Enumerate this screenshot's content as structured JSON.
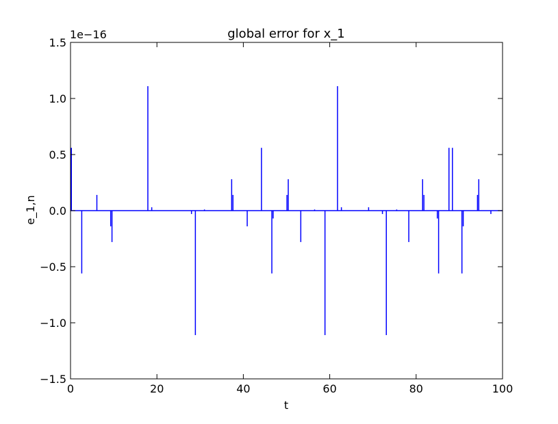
{
  "chart_data": {
    "type": "line",
    "title": "global error for x_1",
    "xlabel": "t",
    "ylabel": "e_1,n",
    "y_scale_label": "1e−16",
    "xlim": [
      0,
      100
    ],
    "ylim": [
      -1.5,
      1.5
    ],
    "x_ticks": [
      0,
      20,
      40,
      60,
      80,
      100
    ],
    "x_tick_labels": [
      "0",
      "20",
      "40",
      "60",
      "80",
      "100"
    ],
    "y_ticks": [
      -1.5,
      -1.0,
      -0.5,
      0.0,
      0.5,
      1.0,
      1.5
    ],
    "y_tick_labels": [
      "−1.5",
      "−1.0",
      "−0.5",
      "0.0",
      "0.5",
      "1.0",
      "1.5"
    ],
    "grid": false,
    "series": [
      {
        "color": "#0000ff",
        "spikes": [
          {
            "t": 0.2,
            "v": 0.56
          },
          {
            "t": 2.6,
            "v": -0.56
          },
          {
            "t": 6.1,
            "v": 0.14
          },
          {
            "t": 9.3,
            "v": -0.14
          },
          {
            "t": 9.6,
            "v": -0.28
          },
          {
            "t": 17.9,
            "v": 1.11
          },
          {
            "t": 18.8,
            "v": 0.03
          },
          {
            "t": 28.0,
            "v": -0.03
          },
          {
            "t": 28.9,
            "v": -1.11
          },
          {
            "t": 31.0,
            "v": 0.01
          },
          {
            "t": 37.3,
            "v": 0.28
          },
          {
            "t": 37.6,
            "v": 0.14
          },
          {
            "t": 40.9,
            "v": -0.14
          },
          {
            "t": 44.2,
            "v": 0.56
          },
          {
            "t": 46.6,
            "v": -0.56
          },
          {
            "t": 46.9,
            "v": -0.07
          },
          {
            "t": 50.1,
            "v": 0.14
          },
          {
            "t": 50.4,
            "v": 0.28
          },
          {
            "t": 53.3,
            "v": -0.28
          },
          {
            "t": 56.5,
            "v": 0.01
          },
          {
            "t": 58.9,
            "v": -1.11
          },
          {
            "t": 61.8,
            "v": 1.11
          },
          {
            "t": 62.7,
            "v": 0.03
          },
          {
            "t": 69.0,
            "v": 0.03
          },
          {
            "t": 72.2,
            "v": -0.03
          },
          {
            "t": 73.1,
            "v": -1.11
          },
          {
            "t": 75.5,
            "v": 0.01
          },
          {
            "t": 78.3,
            "v": -0.28
          },
          {
            "t": 81.5,
            "v": 0.28
          },
          {
            "t": 81.8,
            "v": 0.14
          },
          {
            "t": 84.9,
            "v": -0.07
          },
          {
            "t": 85.2,
            "v": -0.56
          },
          {
            "t": 87.6,
            "v": 0.56
          },
          {
            "t": 88.4,
            "v": 0.56
          },
          {
            "t": 90.6,
            "v": -0.56
          },
          {
            "t": 90.9,
            "v": -0.14
          },
          {
            "t": 94.2,
            "v": 0.14
          },
          {
            "t": 94.5,
            "v": 0.28
          },
          {
            "t": 97.3,
            "v": -0.03
          }
        ]
      }
    ]
  }
}
